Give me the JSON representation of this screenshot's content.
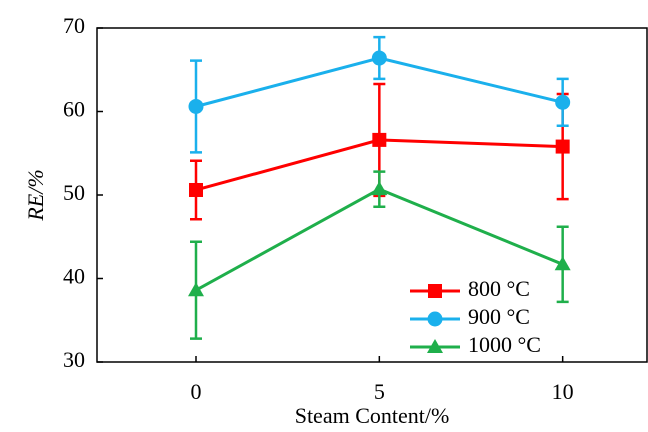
{
  "chart_data": {
    "type": "line",
    "x_label": "Steam Content/%",
    "y_label": "RE/%",
    "x": [
      0,
      5,
      10
    ],
    "xlim": [
      -2.7,
      12.3
    ],
    "xticks": [
      0,
      5,
      10
    ],
    "ylim": [
      30,
      70
    ],
    "yticks": [
      30,
      40,
      50,
      60,
      70
    ],
    "grid": false,
    "legend": "lower-right",
    "series": [
      {
        "name": "800 °C",
        "color": "#ff0000",
        "marker": "square",
        "values": [
          50.6,
          56.6,
          55.8
        ],
        "errors": [
          3.5,
          6.7,
          6.3
        ]
      },
      {
        "name": "900 °C",
        "color": "#1ab0ec",
        "marker": "circle",
        "values": [
          60.6,
          66.4,
          61.1
        ],
        "errors": [
          5.5,
          2.5,
          2.8
        ]
      },
      {
        "name": "1000 °C",
        "color": "#1faf4b",
        "marker": "triangle",
        "values": [
          38.6,
          50.7,
          41.7
        ],
        "errors": [
          5.8,
          2.1,
          4.5
        ]
      }
    ]
  }
}
